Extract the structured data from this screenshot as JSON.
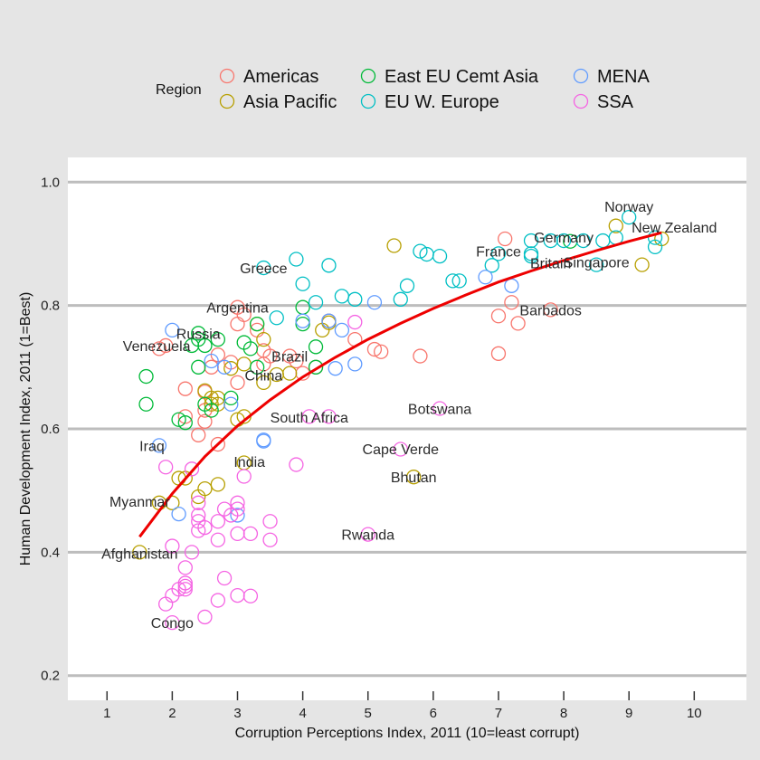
{
  "chart_data": {
    "type": "scatter",
    "title": "",
    "xlabel": "Corruption Perceptions Index, 2011 (10=least corrupt)",
    "ylabel": "Human Development Index, 2011 (1=Best)",
    "xlim": [
      0.4,
      10.8
    ],
    "ylim": [
      0.16,
      1.04
    ],
    "xticks": [
      1,
      2,
      3,
      4,
      5,
      6,
      7,
      8,
      9,
      10
    ],
    "yticks": [
      0.2,
      0.4,
      0.6,
      0.8,
      1.0
    ],
    "ytick_labels": [
      "0.2",
      "0.4",
      "0.6",
      "0.8",
      "1.0"
    ],
    "grid": "horizontal major lines",
    "legend": {
      "title": "Region",
      "placement": "top",
      "entries": [
        {
          "name": "Americas",
          "color": "#f8766d"
        },
        {
          "name": "Asia Pacific",
          "color": "#b79f00"
        },
        {
          "name": "East EU Cemt Asia",
          "color": "#00ba38"
        },
        {
          "name": "EU W. Europe",
          "color": "#00bfc4"
        },
        {
          "name": "MENA",
          "color": "#619cff"
        },
        {
          "name": "SSA",
          "color": "#f564e3"
        }
      ]
    },
    "trend": {
      "color": "#ee0000",
      "x": [
        1.5,
        2.0,
        2.5,
        3.0,
        3.5,
        4.0,
        4.5,
        5.0,
        5.5,
        6.0,
        6.5,
        7.0,
        7.5,
        8.0,
        8.5,
        9.0,
        9.5
      ],
      "y": [
        0.425,
        0.495,
        0.555,
        0.605,
        0.647,
        0.684,
        0.716,
        0.745,
        0.771,
        0.795,
        0.817,
        0.838,
        0.856,
        0.873,
        0.889,
        0.904,
        0.918
      ]
    },
    "series": [
      {
        "name": "Americas",
        "x": [
          7.1,
          7.2,
          7.8,
          7.0,
          7.3,
          7.0,
          5.8,
          5.2,
          5.1,
          4.8,
          3.0,
          3.0,
          3.1,
          3.3,
          3.4,
          3.5,
          3.8,
          3.9,
          4.2,
          4.4,
          2.2,
          2.5,
          2.7,
          2.9,
          2.6,
          2.5,
          2.2,
          1.9,
          1.8,
          2.4,
          2.7,
          3.0,
          2.5,
          3.4,
          4.0
        ],
        "y": [
          0.908,
          0.805,
          0.793,
          0.783,
          0.771,
          0.722,
          0.718,
          0.725,
          0.729,
          0.745,
          0.797,
          0.77,
          0.785,
          0.76,
          0.727,
          0.718,
          0.718,
          0.71,
          0.7,
          0.775,
          0.665,
          0.66,
          0.72,
          0.708,
          0.7,
          0.63,
          0.62,
          0.735,
          0.73,
          0.59,
          0.575,
          0.675,
          0.612,
          0.705,
          0.69
        ]
      },
      {
        "name": "Asia Pacific",
        "x": [
          9.5,
          8.8,
          9.2,
          5.4,
          4.4,
          3.3,
          3.4,
          3.6,
          3.1,
          2.9,
          2.7,
          2.6,
          3.1,
          3.0,
          2.5,
          2.6,
          2.7,
          3.1,
          2.5,
          2.4,
          2.7,
          2.2,
          2.1,
          2.0,
          1.8,
          1.5,
          5.7,
          4.3,
          3.4,
          3.8
        ],
        "y": [
          0.908,
          0.929,
          0.866,
          0.897,
          0.772,
          0.77,
          0.745,
          0.688,
          0.705,
          0.698,
          0.65,
          0.64,
          0.62,
          0.615,
          0.662,
          0.65,
          0.64,
          0.545,
          0.503,
          0.49,
          0.51,
          0.52,
          0.52,
          0.48,
          0.48,
          0.4,
          0.522,
          0.76,
          0.675,
          0.69
        ],
        "names": [
          "New Zealand",
          "",
          "",
          "",
          "",
          "",
          "",
          "",
          "",
          "",
          "",
          "",
          "",
          "",
          "",
          "",
          "",
          "",
          "",
          "",
          "",
          "",
          "",
          "",
          "Myanmar",
          "Afghanistan",
          "Bhutan",
          "",
          "China",
          ""
        ]
      },
      {
        "name": "East EU Cemt Asia",
        "x": [
          8.1,
          4.0,
          4.0,
          4.2,
          4.2,
          3.3,
          3.1,
          3.2,
          3.3,
          2.4,
          2.4,
          2.5,
          2.3,
          2.4,
          2.5,
          2.6,
          2.1,
          2.2,
          1.6,
          1.6,
          2.7,
          2.9
        ],
        "y": [
          0.904,
          0.797,
          0.77,
          0.733,
          0.7,
          0.77,
          0.74,
          0.73,
          0.7,
          0.755,
          0.745,
          0.735,
          0.735,
          0.7,
          0.64,
          0.63,
          0.615,
          0.61,
          0.685,
          0.64,
          0.745,
          0.65
        ],
        "names": [
          "",
          "",
          "",
          "",
          "",
          "",
          "",
          "",
          "",
          "",
          "Russia",
          "",
          "",
          "",
          "",
          "",
          "",
          "",
          "",
          "",
          "",
          ""
        ]
      },
      {
        "name": "EU W. Europe",
        "x": [
          9.0,
          9.4,
          9.4,
          8.8,
          8.6,
          8.3,
          8.0,
          7.8,
          7.5,
          7.0,
          7.5,
          6.9,
          6.4,
          6.3,
          6.1,
          5.9,
          5.8,
          5.5,
          5.6,
          4.8,
          4.6,
          4.4,
          4.2,
          4.0,
          3.9,
          3.6,
          3.4,
          8.5,
          7.5
        ],
        "y": [
          0.943,
          0.91,
          0.895,
          0.91,
          0.905,
          0.905,
          0.905,
          0.905,
          0.905,
          0.884,
          0.88,
          0.865,
          0.84,
          0.84,
          0.88,
          0.883,
          0.888,
          0.81,
          0.832,
          0.81,
          0.815,
          0.865,
          0.805,
          0.835,
          0.875,
          0.78,
          0.861,
          0.866,
          0.884
        ],
        "names": [
          "Norway",
          "",
          "",
          "",
          "",
          "",
          "Germany",
          "Britain",
          "",
          "France",
          "",
          "",
          "",
          "",
          "",
          "",
          "",
          "",
          "",
          "",
          "",
          "",
          "",
          "",
          "",
          "",
          "Greece",
          "Singapore",
          ""
        ]
      },
      {
        "name": "MENA",
        "x": [
          6.8,
          7.2,
          4.0,
          4.6,
          4.8,
          5.1,
          4.5,
          4.4,
          3.4,
          2.9,
          2.8,
          2.6,
          2.0,
          1.8,
          2.1,
          3.0,
          3.4
        ],
        "y": [
          0.846,
          0.832,
          0.775,
          0.76,
          0.705,
          0.805,
          0.698,
          0.775,
          0.582,
          0.64,
          0.7,
          0.71,
          0.76,
          0.573,
          0.462,
          0.46,
          0.58
        ],
        "names": [
          "",
          "",
          "",
          "",
          "",
          "",
          "",
          "",
          "",
          "",
          "",
          "",
          "",
          "Iraq",
          "",
          "",
          ""
        ]
      },
      {
        "name": "SSA",
        "x": [
          6.1,
          5.5,
          5.0,
          4.8,
          4.1,
          4.4,
          3.9,
          3.1,
          3.2,
          3.0,
          3.0,
          3.0,
          2.9,
          2.8,
          2.7,
          2.7,
          2.5,
          2.4,
          2.4,
          2.4,
          2.3,
          2.2,
          2.2,
          2.2,
          2.1,
          2.0,
          2.0,
          1.9,
          2.0,
          2.5,
          2.7,
          2.8,
          3.0,
          3.2,
          3.5,
          3.5,
          2.3,
          2.4,
          1.9,
          2.2
        ],
        "y": [
          0.633,
          0.567,
          0.429,
          0.773,
          0.62,
          0.62,
          0.542,
          0.523,
          0.43,
          0.48,
          0.47,
          0.43,
          0.46,
          0.47,
          0.45,
          0.42,
          0.44,
          0.46,
          0.45,
          0.435,
          0.4,
          0.375,
          0.35,
          0.34,
          0.34,
          0.33,
          0.286,
          0.316,
          0.41,
          0.295,
          0.322,
          0.358,
          0.33,
          0.329,
          0.45,
          0.42,
          0.535,
          0.48,
          0.538,
          0.345
        ],
        "names": [
          "Botswana",
          "Cape Verde",
          "Rwanda",
          "",
          "",
          "",
          "",
          "",
          "",
          "",
          "",
          "",
          "",
          "",
          "",
          "",
          "",
          "",
          "",
          "",
          "",
          "",
          "",
          "",
          "",
          "",
          "Congo",
          "",
          "",
          "",
          "",
          "",
          "",
          "",
          "",
          "",
          "",
          "",
          "",
          ""
        ]
      }
    ],
    "annotations": [
      {
        "text": "Norway",
        "x": 9.0,
        "y": 0.943
      },
      {
        "text": "New Zealand",
        "x": 9.5,
        "y": 0.908
      },
      {
        "text": "Singapore",
        "x": 8.5,
        "y": 0.866
      },
      {
        "text": "Germany",
        "x": 8.0,
        "y": 0.905
      },
      {
        "text": "France",
        "x": 7.0,
        "y": 0.884
      },
      {
        "text": "Britain",
        "x": 7.8,
        "y": 0.863
      },
      {
        "text": "Barbados",
        "x": 7.8,
        "y": 0.793
      },
      {
        "text": "Greece",
        "x": 3.4,
        "y": 0.861
      },
      {
        "text": "Argentina",
        "x": 3.0,
        "y": 0.797
      },
      {
        "text": "Russia",
        "x": 2.4,
        "y": 0.755
      },
      {
        "text": "Venezuela",
        "x": 1.9,
        "y": 0.735
      },
      {
        "text": "Brazil",
        "x": 3.8,
        "y": 0.718
      },
      {
        "text": "China",
        "x": 3.4,
        "y": 0.687
      },
      {
        "text": "South Africa",
        "x": 4.1,
        "y": 0.619
      },
      {
        "text": "Botswana",
        "x": 6.1,
        "y": 0.633
      },
      {
        "text": "Cape Verde",
        "x": 5.5,
        "y": 0.568
      },
      {
        "text": "Bhutan",
        "x": 5.7,
        "y": 0.522
      },
      {
        "text": "Iraq",
        "x": 1.8,
        "y": 0.573
      },
      {
        "text": "India",
        "x": 3.1,
        "y": 0.547
      },
      {
        "text": "Myanmar",
        "x": 1.5,
        "y": 0.483
      },
      {
        "text": "Rwanda",
        "x": 5.0,
        "y": 0.429
      },
      {
        "text": "Afghanistan",
        "x": 1.5,
        "y": 0.398
      },
      {
        "text": "Congo",
        "x": 2.0,
        "y": 0.286
      }
    ]
  }
}
